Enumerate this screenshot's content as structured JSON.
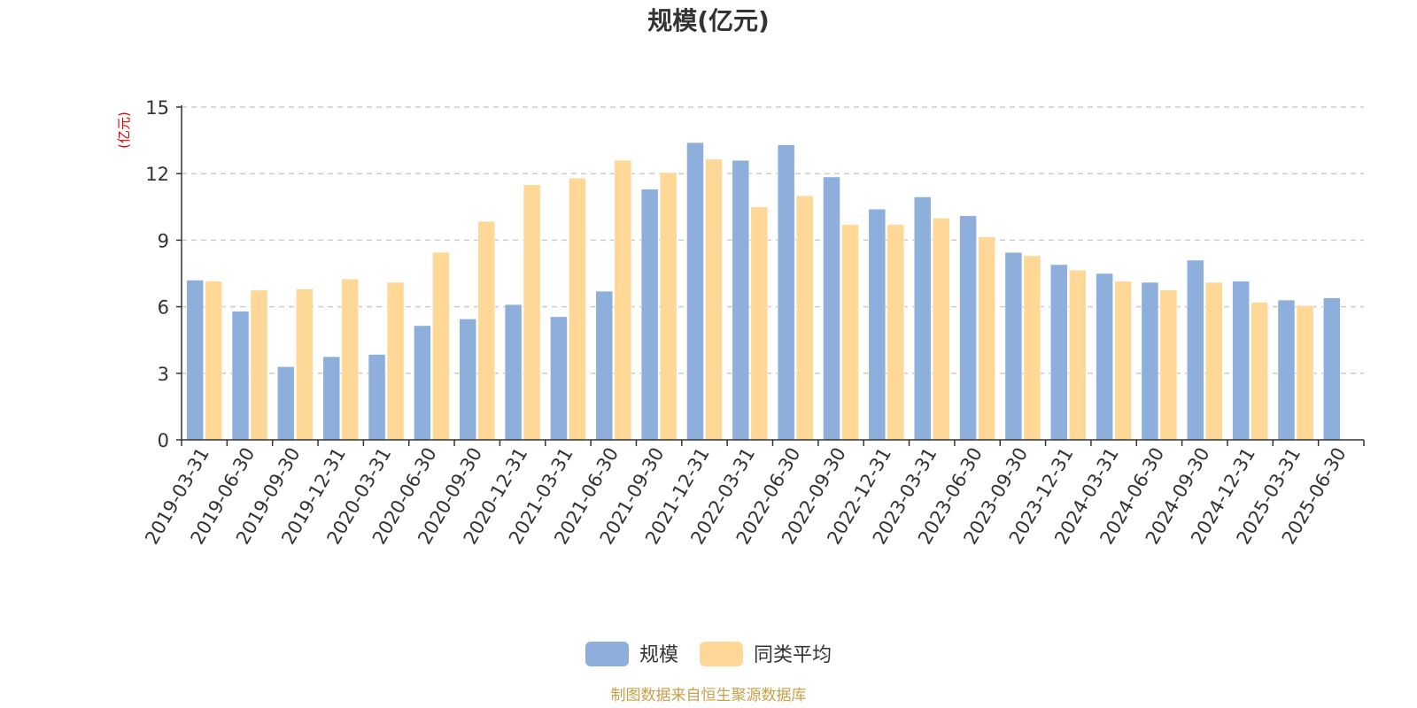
{
  "chart_data": {
    "type": "bar",
    "title": "规模(亿元)",
    "ylabel": "(亿元)",
    "ylim": [
      0,
      15
    ],
    "yticks": [
      0,
      3,
      6,
      9,
      12,
      15
    ],
    "grid": true,
    "legend_position": "bottom-center",
    "categories": [
      "2019-03-31",
      "2019-06-30",
      "2019-09-30",
      "2019-12-31",
      "2020-03-31",
      "2020-06-30",
      "2020-09-30",
      "2020-12-31",
      "2021-03-31",
      "2021-06-30",
      "2021-09-30",
      "2021-12-31",
      "2022-03-31",
      "2022-06-30",
      "2022-09-30",
      "2022-12-31",
      "2023-03-31",
      "2023-06-30",
      "2023-09-30",
      "2023-12-31",
      "2024-03-31",
      "2024-06-30",
      "2024-09-30",
      "2024-12-31",
      "2025-03-31",
      "2025-06-30"
    ],
    "series": [
      {
        "name": "规模",
        "color": "#8eaedc",
        "values": [
          7.2,
          5.8,
          3.3,
          3.75,
          3.85,
          5.15,
          5.45,
          6.1,
          5.55,
          6.7,
          11.3,
          13.4,
          12.6,
          13.3,
          11.85,
          10.4,
          10.95,
          10.1,
          8.45,
          7.9,
          7.5,
          7.1,
          8.1,
          7.15,
          6.3,
          6.4
        ]
      },
      {
        "name": "同类平均",
        "color": "#ffd898",
        "values": [
          7.15,
          6.75,
          6.8,
          7.25,
          7.1,
          8.45,
          9.85,
          11.5,
          11.8,
          12.6,
          12.05,
          12.65,
          10.5,
          11.0,
          9.7,
          9.7,
          10.0,
          9.15,
          8.3,
          7.65,
          7.15,
          6.75,
          7.1,
          6.2,
          6.05,
          null
        ]
      }
    ],
    "source": "制图数据来自恒生聚源数据库"
  }
}
